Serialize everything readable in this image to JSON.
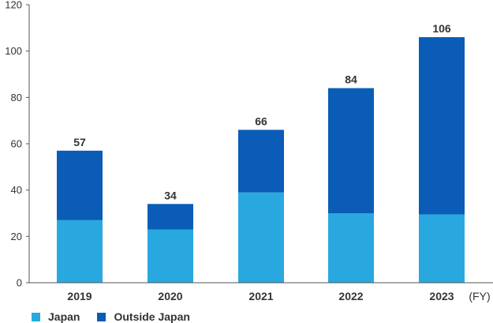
{
  "chart_data": {
    "type": "bar",
    "stacked": true,
    "categories": [
      "2019",
      "2020",
      "2021",
      "2022",
      "2023"
    ],
    "series": [
      {
        "name": "Japan",
        "values": [
          27,
          23,
          39,
          30,
          29.5
        ],
        "color": "#29a8e0"
      },
      {
        "name": "Outside Japan",
        "values": [
          30,
          11,
          27,
          54,
          76.5
        ],
        "color": "#0a5cb6"
      }
    ],
    "totals": [
      "57",
      "34",
      "66",
      "84",
      "106"
    ],
    "x_unit": "(FY)",
    "yticks": [
      "0",
      "20",
      "40",
      "60",
      "80",
      "100",
      "120"
    ],
    "ylim": [
      0,
      120
    ],
    "grid": false,
    "legend_position": "bottom-left"
  }
}
